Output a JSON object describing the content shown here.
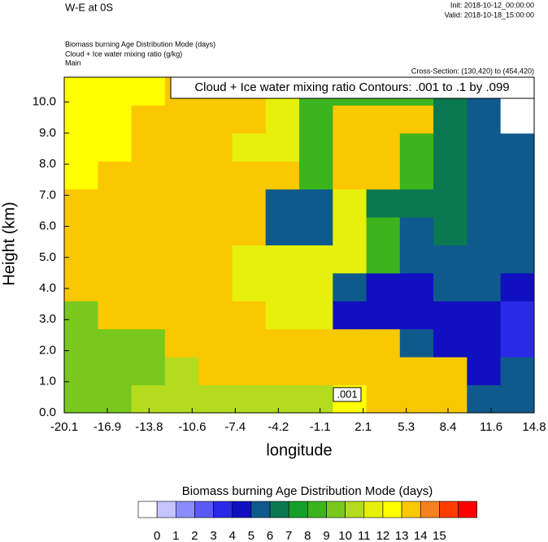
{
  "header": {
    "title": "W-E at 0S",
    "init": "Init: 2018-10-12_00:00:00",
    "valid": "Valid: 2018-10-18_15:00:00",
    "fields": [
      "Biomass burning Age Distribution Mode   (days)",
      "Cloud + Ice water mixing ratio   (g/kg)",
      "Main"
    ],
    "cross_section": "Cross-Section: (130,420) to (454,420)"
  },
  "chart_data": {
    "type": "heatmap",
    "title": "Cloud + Ice water mixing ratio Contours: .001 to .1 by .099",
    "x_label": "longitude",
    "y_label": "Height (km)",
    "contour_label": ".001",
    "xlim": [
      -20.1,
      14.8
    ],
    "ylim": [
      0,
      10.8
    ],
    "xticks": [
      -20.1,
      -16.9,
      -13.8,
      -10.6,
      -7.4,
      -4.2,
      -1.1,
      2.1,
      5.3,
      8.4,
      11.6,
      14.8
    ],
    "yticks": [
      {
        "value": 0,
        "label": "0.0"
      },
      {
        "value": 1,
        "label": "1.0"
      },
      {
        "value": 2,
        "label": "2.0"
      },
      {
        "value": 3,
        "label": "3.0"
      },
      {
        "value": 4,
        "label": "4.0"
      },
      {
        "value": 5,
        "label": "5.0"
      },
      {
        "value": 6,
        "label": "6.0"
      },
      {
        "value": 7,
        "label": "7.0"
      },
      {
        "value": 8,
        "label": "8.0"
      },
      {
        "value": 9,
        "label": "9.0"
      },
      {
        "value": 10,
        "label": "10.0"
      }
    ],
    "x": [
      -18.85,
      -16.36,
      -13.87,
      -11.37,
      -8.88,
      -6.39,
      -3.9,
      -1.4,
      1.09,
      3.58,
      6.07,
      8.56,
      11.06,
      13.55
    ],
    "y": [
      0.45,
      1.35,
      2.25,
      3.15,
      4.05,
      4.95,
      5.85,
      6.75,
      7.65,
      8.55,
      9.45,
      10.35
    ],
    "z": [
      [
        9.5,
        9.5,
        10.5,
        10.5,
        10.5,
        10.5,
        10.5,
        10.5,
        12.5,
        13.5,
        13.5,
        13.5,
        5.5,
        5.5
      ],
      [
        9.5,
        9.5,
        9.5,
        10.5,
        13.5,
        13.5,
        13.5,
        13.5,
        13.5,
        13.5,
        13.5,
        13.5,
        4.5,
        5.5
      ],
      [
        9.5,
        9.5,
        9.5,
        13.5,
        13.5,
        13.5,
        13.5,
        13.5,
        13.5,
        13.5,
        5.5,
        4.5,
        4.5,
        3.5
      ],
      [
        9.5,
        13.5,
        13.5,
        13.5,
        13.5,
        13.5,
        11.5,
        11.5,
        4.5,
        4.5,
        4.5,
        4.5,
        4.5,
        3.5
      ],
      [
        13.5,
        13.5,
        13.5,
        13.5,
        13.5,
        11.5,
        11.5,
        11.5,
        5.5,
        4.5,
        4.5,
        5.5,
        5.5,
        4.5
      ],
      [
        13.5,
        13.5,
        13.5,
        13.5,
        13.5,
        11.5,
        11.5,
        11.5,
        11.5,
        8.5,
        5.5,
        5.5,
        5.5,
        5.5
      ],
      [
        13.5,
        13.5,
        13.5,
        13.5,
        13.5,
        13.5,
        5.5,
        5.5,
        11.5,
        8.5,
        5.5,
        6.5,
        5.5,
        5.5
      ],
      [
        13.5,
        13.5,
        13.5,
        13.5,
        13.5,
        13.5,
        5.5,
        5.5,
        11.5,
        6.5,
        6.5,
        6.5,
        5.5,
        5.5
      ],
      [
        12.5,
        13.5,
        13.5,
        13.5,
        13.5,
        13.5,
        13.5,
        8.5,
        13.5,
        13.5,
        8.5,
        6.5,
        5.5,
        5.5
      ],
      [
        12.5,
        12.5,
        13.5,
        13.5,
        13.5,
        11.5,
        11.5,
        8.5,
        13.5,
        13.5,
        8.5,
        6.5,
        5.5,
        5.5
      ],
      [
        12.5,
        12.5,
        13.5,
        13.5,
        13.5,
        13.5,
        11.5,
        8.5,
        13.5,
        13.5,
        13.5,
        6.5,
        5.5,
        -1
      ],
      [
        12.5,
        12.5,
        12.5,
        13.5,
        13.5,
        13.5,
        11.5,
        8.5,
        8.5,
        8.5,
        8.5,
        6.5,
        5.5,
        -1
      ]
    ],
    "colorbar": {
      "title": "Biomass burning Age Distribution Mode  (days)",
      "levels": [
        0,
        1,
        2,
        3,
        4,
        5,
        6,
        7,
        8,
        9,
        10,
        11,
        12,
        13,
        14,
        15
      ],
      "colors": [
        "#ffffff",
        "#c4c4ff",
        "#8c8cff",
        "#5a5af5",
        "#2a2ae6",
        "#1010c0",
        "#0f5a8c",
        "#0a7850",
        "#14a02a",
        "#3cb41e",
        "#78c81e",
        "#b4dc1e",
        "#e6f00a",
        "#ffff00",
        "#fac800",
        "#f5821e",
        "#ff3c00",
        "#ff0000"
      ]
    }
  }
}
